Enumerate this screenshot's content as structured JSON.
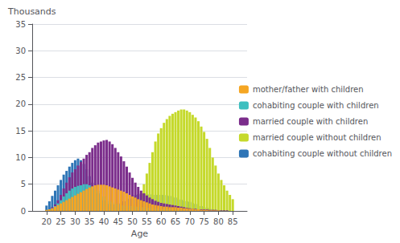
{
  "chart_data": {
    "type": "bar",
    "stacked": true,
    "xlabel": "Age",
    "ylabel": "Thousands",
    "x": [
      20,
      21,
      22,
      23,
      24,
      25,
      26,
      27,
      28,
      29,
      30,
      31,
      32,
      33,
      34,
      35,
      36,
      37,
      38,
      39,
      40,
      41,
      42,
      43,
      44,
      45,
      46,
      47,
      48,
      49,
      50,
      51,
      52,
      53,
      54,
      55,
      56,
      57,
      58,
      59,
      60,
      61,
      62,
      63,
      64,
      65,
      66,
      67,
      68,
      69,
      70,
      71,
      72,
      73,
      74,
      75,
      76,
      77,
      78,
      79,
      80,
      81,
      82,
      83,
      84,
      85
    ],
    "series": [
      {
        "name": "cohabiting couple without children",
        "color": "#2e75b6",
        "values": [
          1.0,
          1.8,
          2.8,
          3.8,
          4.8,
          5.8,
          6.8,
          7.5,
          8.3,
          9.0,
          9.5,
          9.8,
          9.5,
          8.8,
          7.8,
          6.5,
          5.3,
          4.2,
          3.3,
          2.6,
          2.0,
          1.6,
          1.3,
          1.2,
          1.2,
          1.3,
          1.5,
          1.8,
          2.0,
          2.3,
          2.7,
          3.0,
          3.1,
          3.2,
          3.2,
          3.2,
          3.1,
          3.1,
          3.0,
          3.0,
          3.0,
          3.0,
          2.9,
          2.8,
          2.7,
          2.5,
          2.3,
          2.1,
          1.9,
          1.8,
          1.7,
          1.5,
          1.3,
          1.1,
          0.9,
          0.7,
          0.6,
          0.4,
          0.3,
          0.2,
          0.2,
          0.1,
          0.1,
          0.0,
          0.0,
          0.0
        ]
      },
      {
        "name": "married couple without children",
        "color": "#c5d92b",
        "values": [
          0.1,
          0.2,
          0.4,
          0.6,
          1.0,
          1.4,
          1.8,
          2.2,
          2.6,
          2.9,
          3.2,
          3.5,
          3.7,
          3.9,
          4.1,
          4.2,
          4.0,
          3.7,
          3.0,
          2.3,
          1.7,
          1.2,
          0.9,
          0.7,
          0.6,
          0.5,
          0.5,
          0.5,
          0.5,
          0.6,
          0.8,
          1.2,
          2.0,
          3.3,
          5.0,
          7.0,
          9.0,
          11.0,
          13.0,
          14.5,
          15.5,
          16.5,
          17.2,
          17.8,
          18.2,
          18.5,
          18.8,
          19.0,
          19.0,
          18.8,
          18.5,
          18.0,
          17.5,
          16.8,
          15.8,
          14.8,
          13.5,
          11.8,
          10.0,
          8.5,
          7.0,
          5.8,
          4.8,
          3.8,
          3.0,
          2.2
        ]
      },
      {
        "name": "married couple with children",
        "color": "#7b2d8b",
        "values": [
          0.1,
          0.3,
          0.7,
          1.2,
          2.0,
          3.0,
          4.2,
          5.3,
          6.3,
          7.2,
          7.8,
          8.5,
          9.2,
          9.8,
          10.5,
          11.0,
          11.8,
          12.3,
          12.8,
          13.0,
          13.2,
          13.3,
          13.0,
          12.5,
          11.8,
          11.0,
          10.2,
          9.3,
          8.3,
          7.2,
          6.2,
          5.3,
          4.5,
          3.8,
          3.3,
          2.9,
          2.5,
          2.2,
          1.9,
          1.7,
          1.5,
          1.4,
          1.3,
          1.2,
          1.1,
          1.0,
          0.9,
          0.8,
          0.7,
          0.6,
          0.5,
          0.4,
          0.4,
          0.3,
          0.3,
          0.3,
          0.3,
          0.2,
          0.2,
          0.2,
          0.1,
          0.1,
          0.1,
          0.1,
          0.0,
          0.0
        ]
      },
      {
        "name": "cohabiting couple with children",
        "color": "#3dbfbf",
        "values": [
          0.1,
          0.3,
          0.5,
          0.9,
          1.4,
          2.0,
          2.7,
          3.3,
          3.8,
          4.2,
          4.5,
          4.7,
          4.8,
          5.0,
          5.0,
          4.8,
          4.5,
          4.2,
          3.7,
          3.2,
          2.7,
          2.3,
          1.9,
          1.6,
          1.4,
          1.2,
          1.1,
          1.0,
          1.0,
          0.9,
          0.9,
          0.8,
          0.8,
          0.7,
          0.7,
          0.6,
          0.6,
          0.5,
          0.5,
          0.5,
          0.4,
          0.4,
          0.4,
          0.3,
          0.3,
          0.2,
          0.2,
          0.2,
          0.1,
          0.1,
          0.1,
          0.1,
          0.1,
          0.1,
          0.0,
          0.0,
          0.0,
          0.0,
          0.0,
          0.0,
          0.0,
          0.0,
          0.0,
          0.0,
          0.0,
          0.0
        ]
      },
      {
        "name": "mother/father with children",
        "color": "#f5a623",
        "values": [
          0.2,
          0.3,
          0.5,
          0.8,
          1.1,
          1.4,
          1.7,
          2.0,
          2.3,
          2.6,
          2.9,
          3.2,
          3.5,
          3.8,
          4.1,
          4.4,
          4.6,
          4.8,
          4.9,
          4.9,
          4.9,
          4.8,
          4.6,
          4.4,
          4.2,
          4.0,
          3.8,
          3.6,
          3.3,
          3.0,
          2.7,
          2.5,
          2.2,
          2.0,
          1.8,
          1.6,
          1.4,
          1.2,
          1.1,
          1.0,
          0.9,
          0.8,
          0.8,
          0.7,
          0.7,
          0.7,
          0.6,
          0.6,
          0.5,
          0.5,
          0.4,
          0.4,
          0.3,
          0.3,
          0.2,
          0.2,
          0.2,
          0.1,
          0.1,
          0.1,
          0.1,
          0.0,
          0.0,
          0.0,
          0.0,
          0.0
        ]
      }
    ],
    "xlim": [
      15,
      90
    ],
    "xticks": [
      20,
      25,
      30,
      35,
      40,
      45,
      50,
      55,
      60,
      65,
      70,
      75,
      80,
      85
    ],
    "ylim": [
      0,
      35
    ],
    "yticks": [
      0,
      5,
      10,
      15,
      20,
      25,
      30,
      35
    ],
    "grid": true,
    "legend": "right"
  }
}
